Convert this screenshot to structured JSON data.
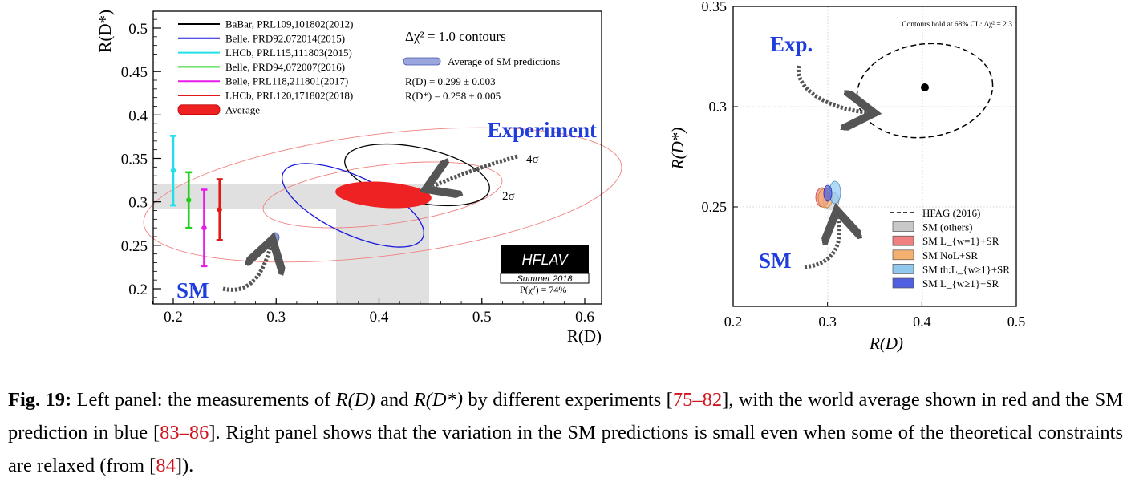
{
  "figure": {
    "left": {
      "xlabel": "R(D)",
      "ylabel": "R(D*)",
      "xticks": [
        "0.2",
        "0.3",
        "0.4",
        "0.5",
        "0.6"
      ],
      "yticks": [
        "0.2",
        "0.25",
        "0.3",
        "0.35",
        "0.4",
        "0.45",
        "0.5"
      ],
      "legend": [
        {
          "label": "BaBar, PRL109,101802(2012)",
          "color": "#000000",
          "kind": "line"
        },
        {
          "label": "Belle, PRD92,072014(2015)",
          "color": "#1a1adc",
          "kind": "line"
        },
        {
          "label": "LHCb, PRL115,111803(2015)",
          "color": "#22e0e8",
          "kind": "line"
        },
        {
          "label": "Belle, PRD94,072007(2016)",
          "color": "#22d022",
          "kind": "line"
        },
        {
          "label": "Belle, PRL118,211801(2017)",
          "color": "#e81ce8",
          "kind": "line"
        },
        {
          "label": "LHCb, PRL120,171802(2018)",
          "color": "#e01818",
          "kind": "line"
        },
        {
          "label": "Average",
          "color": "#ee2222",
          "kind": "ellipse"
        }
      ],
      "contours_title": "Δχ² = 1.0 contours",
      "sm_avg_label": "Average of SM predictions",
      "rd_value": "R(D) = 0.299 ± 0.003",
      "rdstar_value": "R(D*) = 0.258 ± 0.005",
      "experiment_label": "Experiment",
      "sm_label": "SM",
      "sigma4": "4σ",
      "sigma2": "2σ",
      "badge_main": "HFLAV",
      "badge_sub": "Summer 2018",
      "pchi2": "P(χ²) = 74%"
    },
    "right": {
      "xlabel": "R(D)",
      "ylabel": "R(D*)",
      "xticks": [
        "0.2",
        "0.3",
        "0.4",
        "0.5"
      ],
      "yticks": [
        "0.25",
        "0.3",
        "0.35"
      ],
      "note": "Contours hold at 68% CL: Δχ² = 2.3",
      "exp_label": "Exp.",
      "sm_label": "SM",
      "legend": [
        {
          "label": "HFAG (2016)",
          "kind": "dash",
          "color": "#000000"
        },
        {
          "label": "SM (others)",
          "kind": "box",
          "color": "#c8c8c8"
        },
        {
          "label": "SM L_{w=1}+SR",
          "kind": "box",
          "color": "#f08080"
        },
        {
          "label": "SM NoL+SR",
          "kind": "box",
          "color": "#f4b070"
        },
        {
          "label": "SM th:L_{w≥1}+SR",
          "kind": "box",
          "color": "#90c8f0"
        },
        {
          "label": "SM L_{w≥1}+SR",
          "kind": "box",
          "color": "#5060e0"
        }
      ]
    }
  },
  "chart_data": [
    {
      "type": "scatter",
      "xlabel": "R(D)",
      "ylabel": "R(D*)",
      "xlim": [
        0.18,
        0.62
      ],
      "ylim": [
        0.185,
        0.52
      ],
      "grid": false,
      "legend_position": "top-left",
      "measurements_rdstar_1d": [
        {
          "name": "LHCb, PRL115,111803(2015)",
          "x": 0.2,
          "y": 0.336,
          "yerr": 0.04,
          "color": "#22e0e8"
        },
        {
          "name": "Belle, PRD94,072007(2016)",
          "x": 0.215,
          "y": 0.302,
          "yerr": 0.032,
          "color": "#22d022"
        },
        {
          "name": "Belle, PRL118,211801(2017)",
          "x": 0.23,
          "y": 0.27,
          "yerr": 0.044,
          "color": "#e81ce8"
        },
        {
          "name": "LHCb, PRL120,171802(2018)",
          "x": 0.245,
          "y": 0.291,
          "yerr": 0.035,
          "color": "#e01818"
        }
      ],
      "contours": [
        {
          "name": "BaBar, PRL109,101802(2012)",
          "center": [
            0.44,
            0.332
          ],
          "color": "#000000"
        },
        {
          "name": "Belle, PRD92,072014(2015)",
          "center": [
            0.375,
            0.292
          ],
          "color": "#1a1adc"
        },
        {
          "name": "Average",
          "center": [
            0.407,
            0.306
          ],
          "color": "#ee2222",
          "filled": true
        }
      ],
      "sm_average": {
        "x": 0.299,
        "y": 0.258
      },
      "sm_bands": {
        "x": [
          0.36,
          0.452
        ],
        "y": [
          0.292,
          0.32
        ]
      }
    },
    {
      "type": "scatter",
      "xlabel": "R(D)",
      "ylabel": "R(D*)",
      "xlim": [
        0.2,
        0.5
      ],
      "ylim": [
        0.2,
        0.35
      ],
      "grid": true,
      "legend_position": "bottom-right",
      "points": [
        {
          "name": "Exp.",
          "x": 0.403,
          "y": 0.31
        }
      ],
      "contours": [
        {
          "name": "HFAG (2016)",
          "center": [
            0.403,
            0.31
          ],
          "style": "dashed"
        },
        {
          "name": "SM (others)",
          "center": [
            0.3,
            0.253
          ]
        },
        {
          "name": "SM L_{w=1}+SR",
          "center": [
            0.296,
            0.254
          ]
        },
        {
          "name": "SM NoL+SR",
          "center": [
            0.298,
            0.253
          ]
        },
        {
          "name": "SM th:L_{w≥1}+SR",
          "center": [
            0.305,
            0.256
          ]
        },
        {
          "name": "SM L_{w≥1}+SR",
          "center": [
            0.299,
            0.257
          ]
        }
      ]
    }
  ],
  "caption": {
    "label": "Fig. 19:",
    "p1": " Left panel: the measurements of ",
    "m1": "R(D)",
    "p2": " and ",
    "m2": "R(D*)",
    "p3": " by different experiments [",
    "r1": "75–82",
    "p4": "], with the world average shown in red and the SM prediction in blue [",
    "r2": "83–86",
    "p5": "]. Right panel shows that the variation in the SM predictions is small even when some of the theoretical constraints are relaxed (from [",
    "r3": "84",
    "p6": "])."
  }
}
